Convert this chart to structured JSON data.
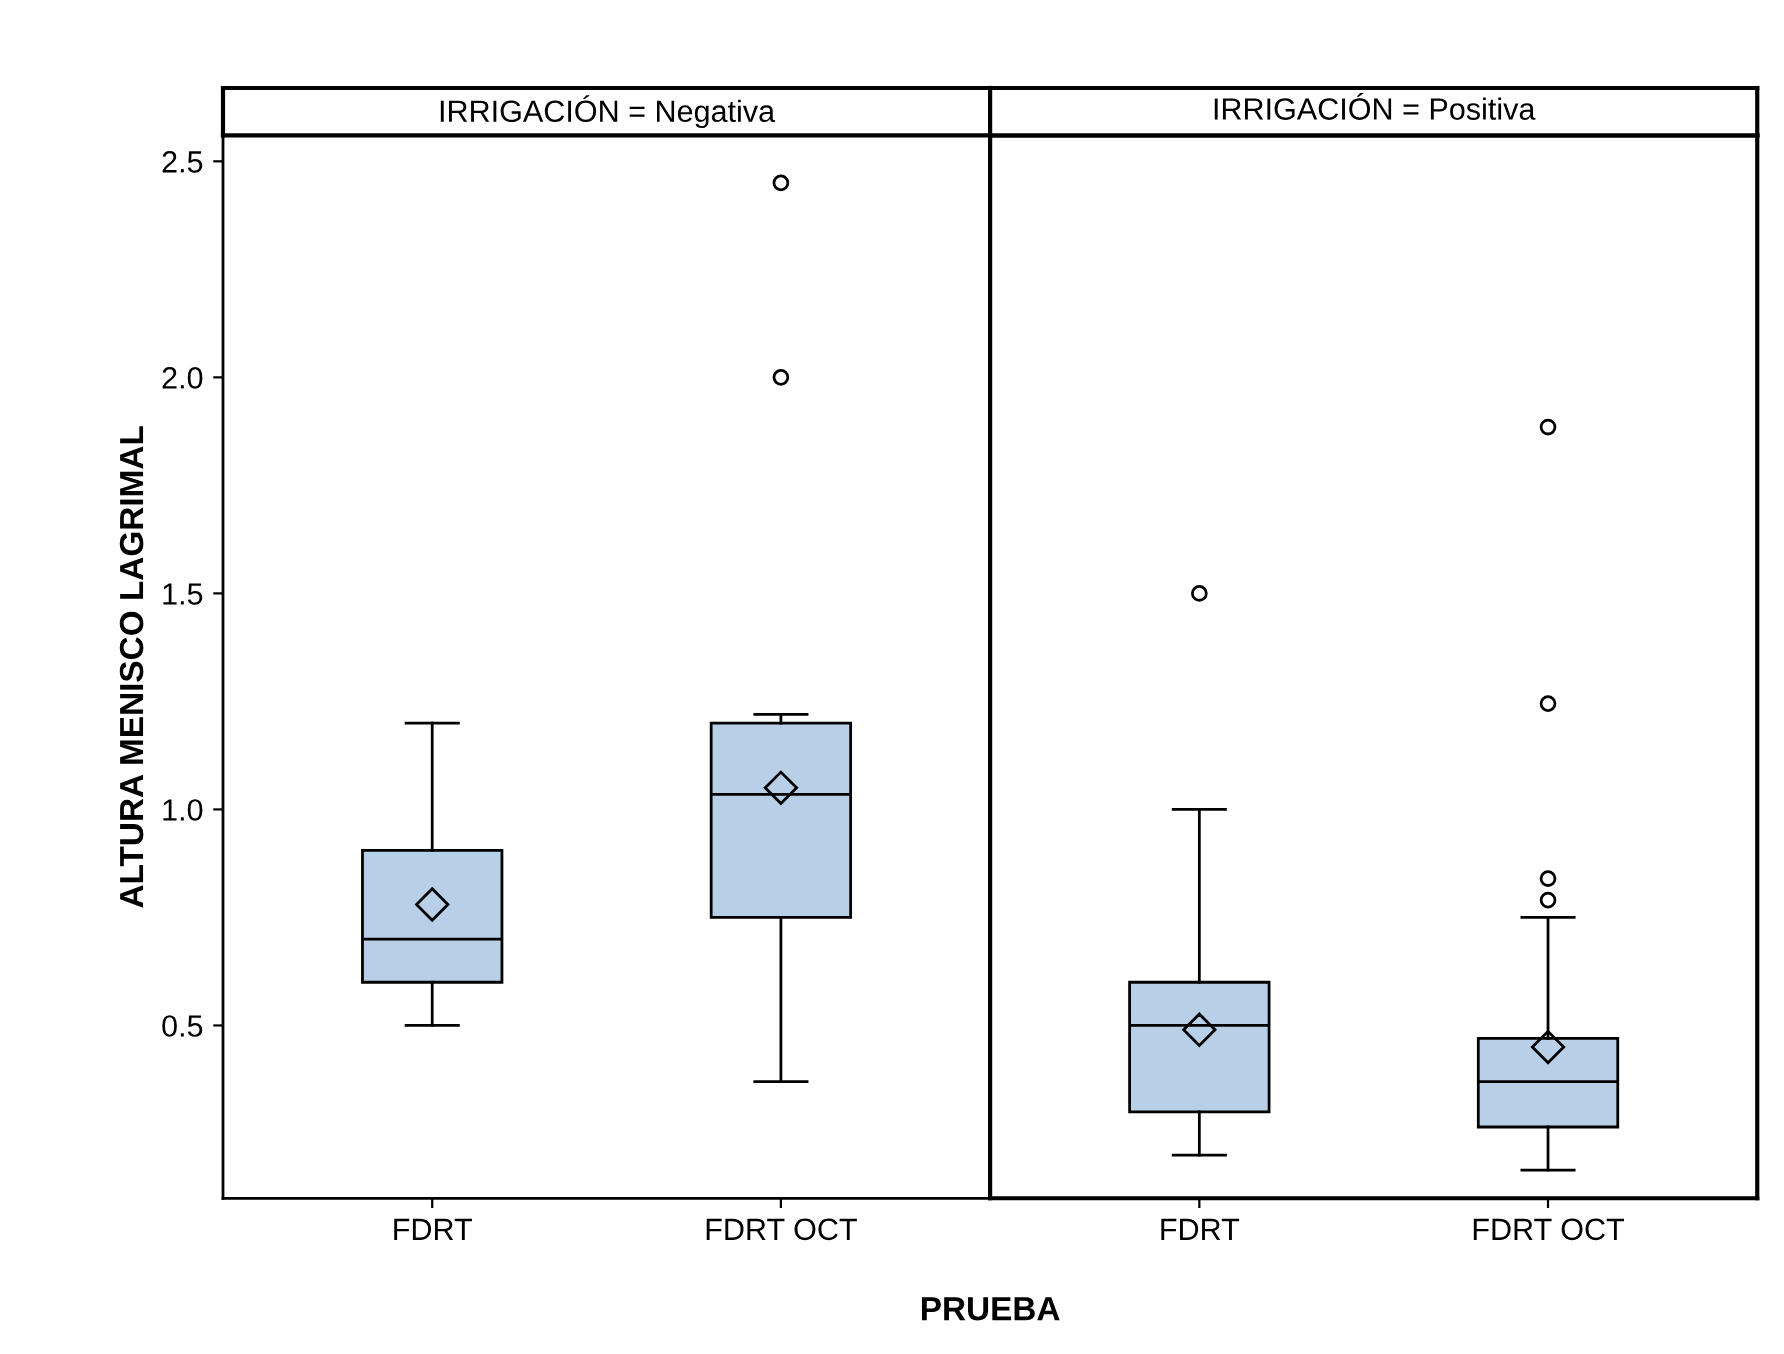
{
  "chart_data": [
    {
      "type": "box",
      "title": "IRRIGACIÓN = Negativa",
      "ylabel": "ALTURA MENISCO LAGRIMAL",
      "xlabel": "PRUEBA",
      "categories": [
        "FDRT",
        "FDRT OCT"
      ],
      "color": "#b8cfe8",
      "ylim": [
        0.1,
        2.56
      ],
      "yticks": [
        0.5,
        {
          "value": 1,
          "label": "1.0"
        },
        1.5,
        {
          "value": 2,
          "label": "2.0"
        },
        2.5
      ],
      "marker": "diamond",
      "boxes": [
        {
          "low": 0.5,
          "q1": 0.6,
          "median": 0.7,
          "q3": 0.905,
          "high": 1.2,
          "mean": 0.78
        },
        {
          "low": 0.37,
          "q1": 0.75,
          "median": 1.035,
          "q3": 1.2,
          "high": 1.22,
          "mean": 1.05,
          "outliers": [
            2.0,
            2.45
          ]
        }
      ]
    },
    {
      "type": "box",
      "title": "IRRIGACIÓN = Positiva",
      "categories": [
        "FDRT",
        "FDRT OCT"
      ],
      "color": "#b8cfe8",
      "ylim": [
        0.1,
        2.56
      ],
      "tick_labels": "x",
      "marker": "diamond",
      "boxes": [
        {
          "low": 0.2,
          "q1": 0.3,
          "median": 0.5,
          "q3": 0.6,
          "high": 1.0,
          "mean": 0.49,
          "outliers": [
            1.5
          ]
        },
        {
          "low": 0.165,
          "q1": 0.265,
          "median": 0.37,
          "q3": 0.47,
          "high": 0.75,
          "mean": 0.45,
          "outliers": [
            0.79,
            0.84,
            1.245,
            1.885
          ]
        }
      ]
    }
  ]
}
